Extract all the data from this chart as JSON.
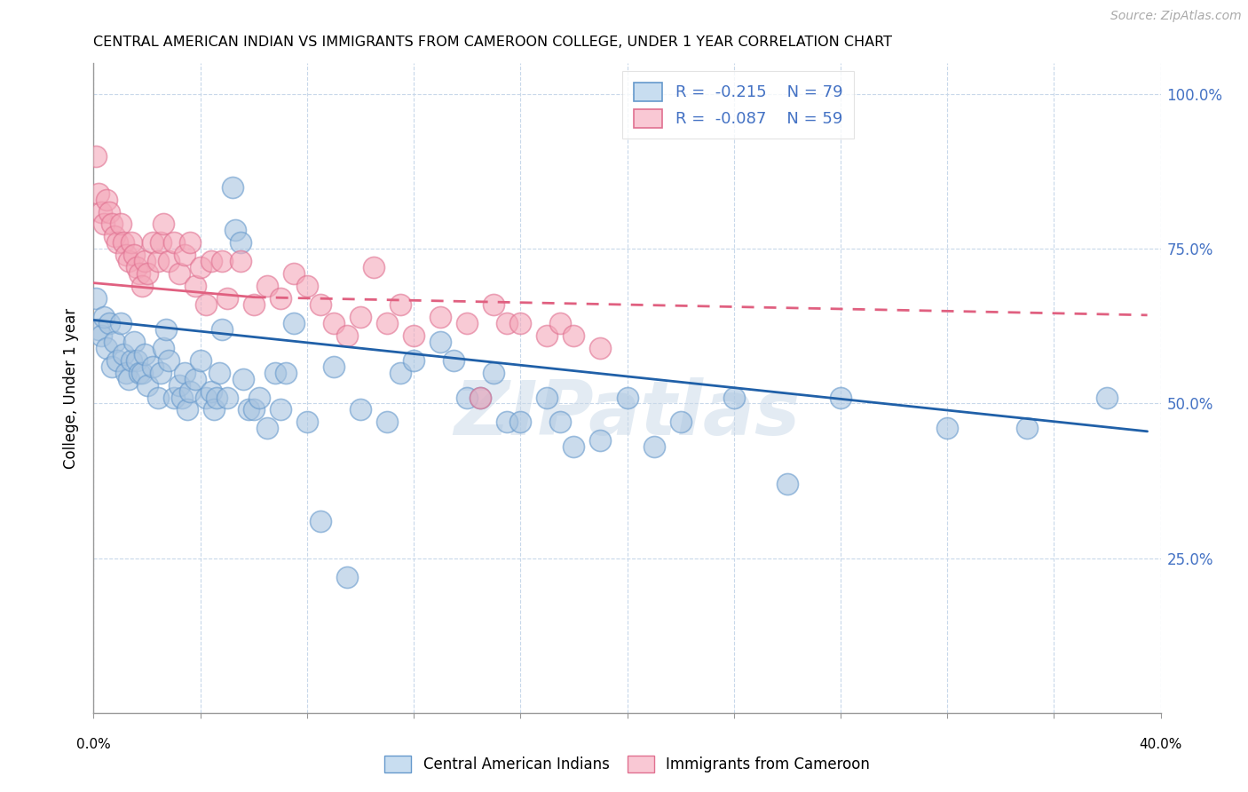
{
  "title": "CENTRAL AMERICAN INDIAN VS IMMIGRANTS FROM CAMEROON COLLEGE, UNDER 1 YEAR CORRELATION CHART",
  "source": "Source: ZipAtlas.com",
  "ylabel": "College, Under 1 year",
  "ytick_labels": [
    "25.0%",
    "50.0%",
    "75.0%",
    "100.0%"
  ],
  "ytick_vals": [
    0.25,
    0.5,
    0.75,
    1.0
  ],
  "blue_face": "#a8c4e0",
  "blue_edge": "#6699cc",
  "pink_face": "#f4a7b9",
  "pink_edge": "#e07090",
  "blue_line_color": "#2060a8",
  "pink_line_color": "#e06080",
  "grid_color": "#c8d8ea",
  "watermark_color": "#c8d8e8",
  "blue_scatter": [
    [
      0.001,
      0.67
    ],
    [
      0.002,
      0.62
    ],
    [
      0.003,
      0.61
    ],
    [
      0.004,
      0.64
    ],
    [
      0.005,
      0.59
    ],
    [
      0.006,
      0.63
    ],
    [
      0.007,
      0.56
    ],
    [
      0.008,
      0.6
    ],
    [
      0.009,
      0.57
    ],
    [
      0.01,
      0.63
    ],
    [
      0.011,
      0.58
    ],
    [
      0.012,
      0.55
    ],
    [
      0.013,
      0.54
    ],
    [
      0.014,
      0.57
    ],
    [
      0.015,
      0.6
    ],
    [
      0.016,
      0.57
    ],
    [
      0.017,
      0.55
    ],
    [
      0.018,
      0.55
    ],
    [
      0.019,
      0.58
    ],
    [
      0.02,
      0.53
    ],
    [
      0.022,
      0.56
    ],
    [
      0.024,
      0.51
    ],
    [
      0.025,
      0.55
    ],
    [
      0.026,
      0.59
    ],
    [
      0.027,
      0.62
    ],
    [
      0.028,
      0.57
    ],
    [
      0.03,
      0.51
    ],
    [
      0.032,
      0.53
    ],
    [
      0.033,
      0.51
    ],
    [
      0.034,
      0.55
    ],
    [
      0.035,
      0.49
    ],
    [
      0.036,
      0.52
    ],
    [
      0.038,
      0.54
    ],
    [
      0.04,
      0.57
    ],
    [
      0.042,
      0.51
    ],
    [
      0.044,
      0.52
    ],
    [
      0.045,
      0.49
    ],
    [
      0.046,
      0.51
    ],
    [
      0.047,
      0.55
    ],
    [
      0.048,
      0.62
    ],
    [
      0.05,
      0.51
    ],
    [
      0.052,
      0.85
    ],
    [
      0.053,
      0.78
    ],
    [
      0.055,
      0.76
    ],
    [
      0.056,
      0.54
    ],
    [
      0.058,
      0.49
    ],
    [
      0.06,
      0.49
    ],
    [
      0.062,
      0.51
    ],
    [
      0.065,
      0.46
    ],
    [
      0.068,
      0.55
    ],
    [
      0.07,
      0.49
    ],
    [
      0.072,
      0.55
    ],
    [
      0.075,
      0.63
    ],
    [
      0.08,
      0.47
    ],
    [
      0.085,
      0.31
    ],
    [
      0.09,
      0.56
    ],
    [
      0.095,
      0.22
    ],
    [
      0.1,
      0.49
    ],
    [
      0.11,
      0.47
    ],
    [
      0.115,
      0.55
    ],
    [
      0.12,
      0.57
    ],
    [
      0.13,
      0.6
    ],
    [
      0.135,
      0.57
    ],
    [
      0.14,
      0.51
    ],
    [
      0.145,
      0.51
    ],
    [
      0.15,
      0.55
    ],
    [
      0.155,
      0.47
    ],
    [
      0.16,
      0.47
    ],
    [
      0.17,
      0.51
    ],
    [
      0.175,
      0.47
    ],
    [
      0.18,
      0.43
    ],
    [
      0.19,
      0.44
    ],
    [
      0.2,
      0.51
    ],
    [
      0.21,
      0.43
    ],
    [
      0.22,
      0.47
    ],
    [
      0.24,
      0.51
    ],
    [
      0.26,
      0.37
    ],
    [
      0.28,
      0.51
    ],
    [
      0.32,
      0.46
    ],
    [
      0.35,
      0.46
    ],
    [
      0.38,
      0.51
    ]
  ],
  "pink_scatter": [
    [
      0.001,
      0.9
    ],
    [
      0.002,
      0.84
    ],
    [
      0.003,
      0.81
    ],
    [
      0.004,
      0.79
    ],
    [
      0.005,
      0.83
    ],
    [
      0.006,
      0.81
    ],
    [
      0.007,
      0.79
    ],
    [
      0.008,
      0.77
    ],
    [
      0.009,
      0.76
    ],
    [
      0.01,
      0.79
    ],
    [
      0.011,
      0.76
    ],
    [
      0.012,
      0.74
    ],
    [
      0.013,
      0.73
    ],
    [
      0.014,
      0.76
    ],
    [
      0.015,
      0.74
    ],
    [
      0.016,
      0.72
    ],
    [
      0.017,
      0.71
    ],
    [
      0.018,
      0.69
    ],
    [
      0.019,
      0.73
    ],
    [
      0.02,
      0.71
    ],
    [
      0.022,
      0.76
    ],
    [
      0.024,
      0.73
    ],
    [
      0.025,
      0.76
    ],
    [
      0.026,
      0.79
    ],
    [
      0.028,
      0.73
    ],
    [
      0.03,
      0.76
    ],
    [
      0.032,
      0.71
    ],
    [
      0.034,
      0.74
    ],
    [
      0.036,
      0.76
    ],
    [
      0.038,
      0.69
    ],
    [
      0.04,
      0.72
    ],
    [
      0.042,
      0.66
    ],
    [
      0.044,
      0.73
    ],
    [
      0.048,
      0.73
    ],
    [
      0.05,
      0.67
    ],
    [
      0.055,
      0.73
    ],
    [
      0.06,
      0.66
    ],
    [
      0.065,
      0.69
    ],
    [
      0.07,
      0.67
    ],
    [
      0.075,
      0.71
    ],
    [
      0.08,
      0.69
    ],
    [
      0.085,
      0.66
    ],
    [
      0.09,
      0.63
    ],
    [
      0.095,
      0.61
    ],
    [
      0.1,
      0.64
    ],
    [
      0.105,
      0.72
    ],
    [
      0.11,
      0.63
    ],
    [
      0.115,
      0.66
    ],
    [
      0.12,
      0.61
    ],
    [
      0.13,
      0.64
    ],
    [
      0.14,
      0.63
    ],
    [
      0.145,
      0.51
    ],
    [
      0.15,
      0.66
    ],
    [
      0.155,
      0.63
    ],
    [
      0.16,
      0.63
    ],
    [
      0.17,
      0.61
    ],
    [
      0.175,
      0.63
    ],
    [
      0.18,
      0.61
    ],
    [
      0.19,
      0.59
    ]
  ],
  "blue_line": {
    "x0": 0.0,
    "x1": 0.395,
    "y0": 0.635,
    "y1": 0.455
  },
  "pink_line_solid": {
    "x0": 0.0,
    "x1": 0.06,
    "y0": 0.695,
    "y1": 0.672
  },
  "pink_line_dash": {
    "x0": 0.06,
    "x1": 0.395,
    "y0": 0.672,
    "y1": 0.643
  },
  "xmin": 0.0,
  "xmax": 0.4,
  "ymin": 0.0,
  "ymax": 1.05,
  "xtick_count": 11
}
